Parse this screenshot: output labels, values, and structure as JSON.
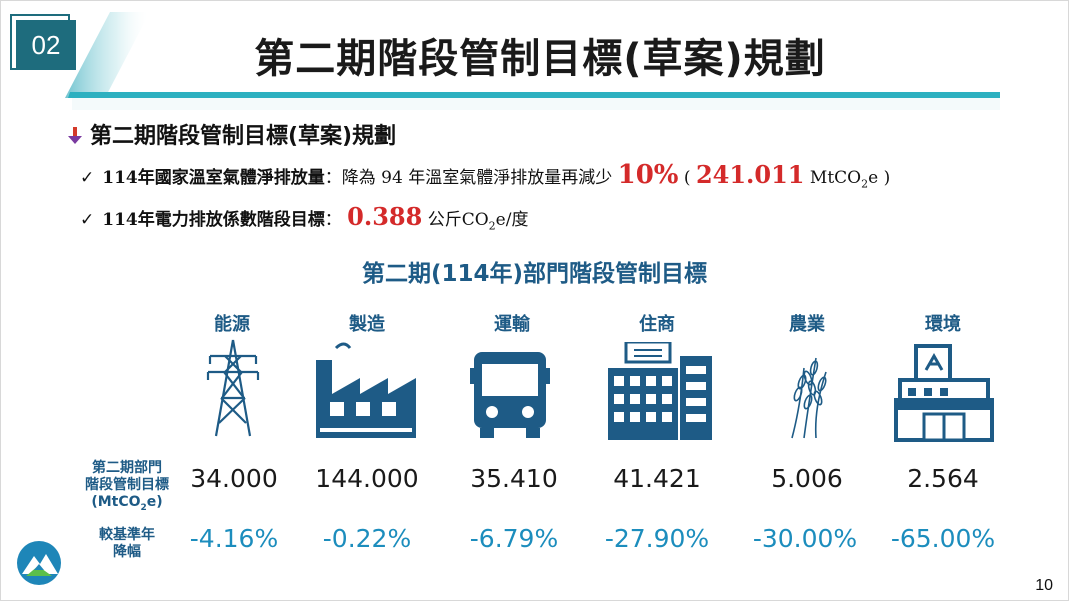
{
  "slide": {
    "number": "02",
    "title": "第二期階段管制目標(草案)規劃",
    "page": "10"
  },
  "main_bullet": {
    "text": "第二期階段管制目標(草案)規劃"
  },
  "line1": {
    "check": "✓",
    "label": "114年國家溫室氣體淨排放量",
    "colon": "：",
    "text": "降為 94 年溫室氣體淨排放量再減少",
    "percent": "10%",
    "open": "(",
    "amount": "241.011",
    "unit_pre": "MtCO",
    "unit_sub": "2",
    "unit_post": "e",
    "close": ")"
  },
  "line2": {
    "check": "✓",
    "label": "114年電力排放係數階段目標",
    "colon": "：",
    "value": "0.388",
    "unit_pre": "公斤CO",
    "unit_sub": "2",
    "unit_post": "e/度"
  },
  "subheading": "第二期(114年)部門階段管制目標",
  "side_labels": {
    "target": {
      "l1": "第二期部門",
      "l2": "階段管制目標",
      "l3_pre": "(MtCO",
      "l3_sub": "2",
      "l3_post": "e)"
    },
    "reduction": {
      "l1": "較基準年",
      "l2": "降幅"
    }
  },
  "sectors": [
    {
      "name": "能源",
      "icon": "power-tower-icon",
      "target": "34.000",
      "reduction": "-4.16%"
    },
    {
      "name": "製造",
      "icon": "factory-icon",
      "target": "144.000",
      "reduction": "-0.22%"
    },
    {
      "name": "運輸",
      "icon": "bus-icon",
      "target": "35.410",
      "reduction": "-6.79%"
    },
    {
      "name": "住商",
      "icon": "building-icon",
      "target": "41.421",
      "reduction": "-27.90%"
    },
    {
      "name": "農業",
      "icon": "wheat-icon",
      "target": "5.006",
      "reduction": "-30.00%"
    },
    {
      "name": "環境",
      "icon": "recycling-facility-icon",
      "target": "2.564",
      "reduction": "-65.00%"
    }
  ],
  "colors": {
    "accent": "#1e6c7d",
    "icon_blue": "#1e5b86",
    "highlight_red": "#d42a2a",
    "reduction_blue": "#1c8dbd"
  }
}
